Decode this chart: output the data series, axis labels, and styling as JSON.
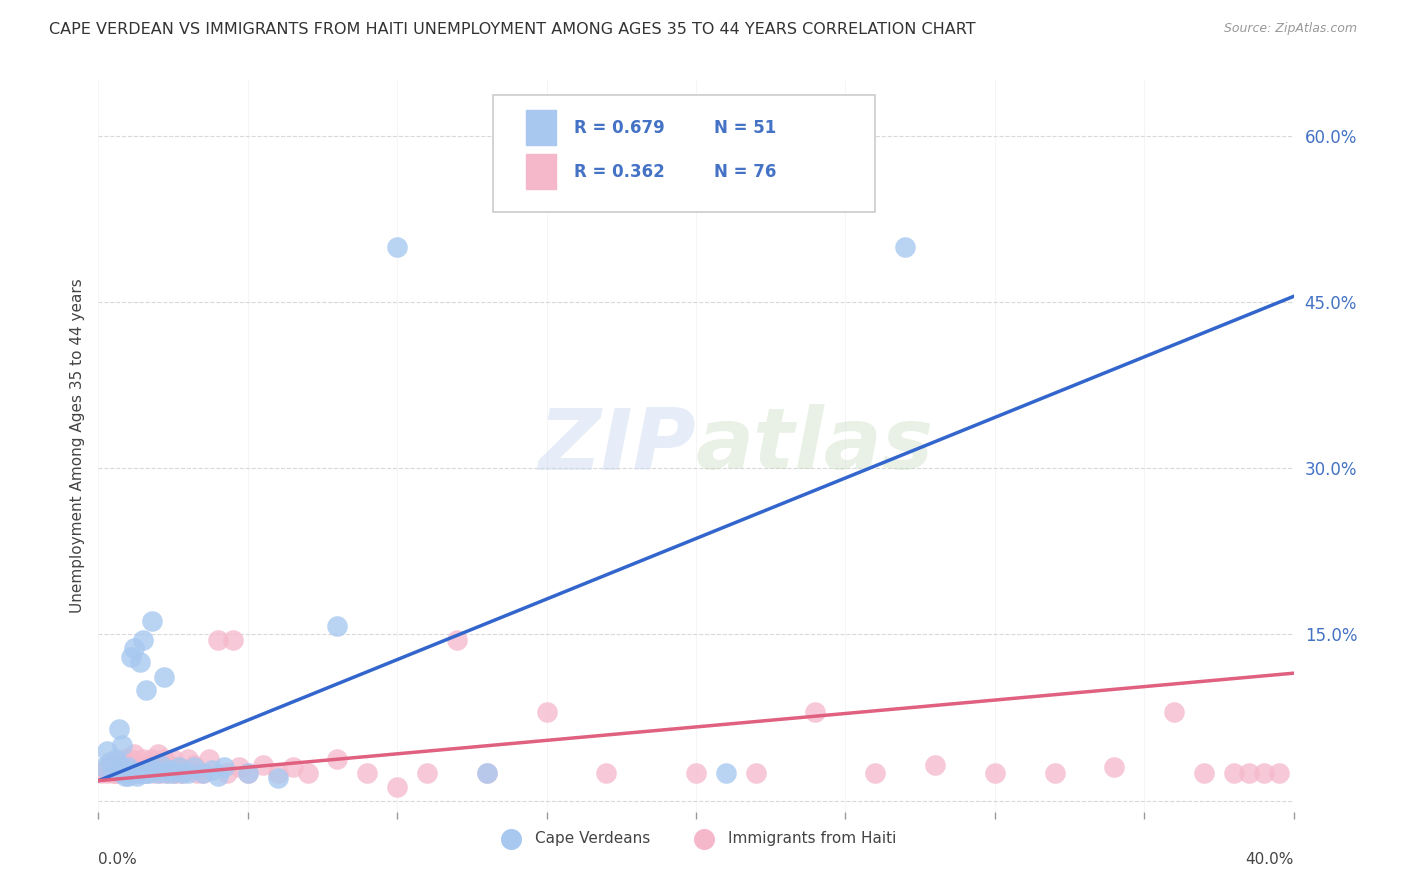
{
  "title": "CAPE VERDEAN VS IMMIGRANTS FROM HAITI UNEMPLOYMENT AMONG AGES 35 TO 44 YEARS CORRELATION CHART",
  "source": "Source: ZipAtlas.com",
  "ylabel": "Unemployment Among Ages 35 to 44 years",
  "xlim": [
    0.0,
    0.4
  ],
  "ylim": [
    -0.01,
    0.65
  ],
  "yticks": [
    0.0,
    0.15,
    0.3,
    0.45,
    0.6
  ],
  "ytick_labels": [
    "",
    "15.0%",
    "30.0%",
    "45.0%",
    "60.0%"
  ],
  "xticks": [
    0.0,
    0.05,
    0.1,
    0.15,
    0.2,
    0.25,
    0.3,
    0.35,
    0.4
  ],
  "grid_color": "#d0d0d0",
  "background_color": "#ffffff",
  "cape_verdean_color": "#a8c8f0",
  "haiti_color": "#f5b8cb",
  "cape_verdean_line_color": "#3366cc",
  "haiti_line_color": "#e06080",
  "tick_color": "#4472c4",
  "R_cape_verdean": 0.679,
  "N_cape_verdean": 51,
  "R_haiti": 0.362,
  "N_haiti": 76,
  "cv_line_x0": 0.0,
  "cv_line_y0": 0.018,
  "cv_line_x1": 0.4,
  "cv_line_y1": 0.455,
  "ht_line_x0": 0.0,
  "ht_line_y0": 0.018,
  "ht_line_x1": 0.4,
  "ht_line_y1": 0.115,
  "cape_verdean_points_x": [
    0.002,
    0.003,
    0.004,
    0.005,
    0.006,
    0.006,
    0.007,
    0.007,
    0.008,
    0.008,
    0.009,
    0.009,
    0.01,
    0.01,
    0.01,
    0.011,
    0.011,
    0.012,
    0.012,
    0.013,
    0.014,
    0.014,
    0.015,
    0.015,
    0.016,
    0.016,
    0.017,
    0.018,
    0.018,
    0.019,
    0.02,
    0.021,
    0.022,
    0.023,
    0.024,
    0.025,
    0.027,
    0.028,
    0.03,
    0.032,
    0.035,
    0.038,
    0.04,
    0.042,
    0.05,
    0.06,
    0.08,
    0.1,
    0.13,
    0.21,
    0.27
  ],
  "cape_verdean_points_y": [
    0.03,
    0.045,
    0.035,
    0.028,
    0.03,
    0.038,
    0.032,
    0.065,
    0.025,
    0.05,
    0.022,
    0.028,
    0.022,
    0.027,
    0.03,
    0.025,
    0.13,
    0.025,
    0.138,
    0.022,
    0.025,
    0.125,
    0.025,
    0.145,
    0.025,
    0.1,
    0.025,
    0.028,
    0.162,
    0.028,
    0.025,
    0.032,
    0.112,
    0.025,
    0.028,
    0.025,
    0.03,
    0.025,
    0.025,
    0.03,
    0.025,
    0.028,
    0.022,
    0.03,
    0.025,
    0.02,
    0.158,
    0.5,
    0.025,
    0.025,
    0.5
  ],
  "haiti_points_x": [
    0.001,
    0.002,
    0.003,
    0.004,
    0.004,
    0.005,
    0.005,
    0.006,
    0.006,
    0.007,
    0.008,
    0.008,
    0.009,
    0.009,
    0.01,
    0.01,
    0.011,
    0.012,
    0.012,
    0.013,
    0.013,
    0.014,
    0.015,
    0.015,
    0.016,
    0.017,
    0.018,
    0.019,
    0.02,
    0.02,
    0.021,
    0.022,
    0.023,
    0.024,
    0.025,
    0.025,
    0.026,
    0.027,
    0.028,
    0.03,
    0.03,
    0.032,
    0.033,
    0.035,
    0.037,
    0.04,
    0.043,
    0.045,
    0.047,
    0.05,
    0.055,
    0.06,
    0.065,
    0.07,
    0.08,
    0.09,
    0.1,
    0.11,
    0.12,
    0.13,
    0.15,
    0.17,
    0.2,
    0.22,
    0.24,
    0.26,
    0.28,
    0.3,
    0.32,
    0.34,
    0.36,
    0.37,
    0.38,
    0.385,
    0.39,
    0.395
  ],
  "haiti_points_y": [
    0.025,
    0.028,
    0.025,
    0.028,
    0.032,
    0.025,
    0.035,
    0.025,
    0.03,
    0.025,
    0.03,
    0.035,
    0.025,
    0.038,
    0.025,
    0.032,
    0.038,
    0.025,
    0.042,
    0.03,
    0.025,
    0.028,
    0.03,
    0.038,
    0.025,
    0.032,
    0.038,
    0.025,
    0.03,
    0.042,
    0.025,
    0.038,
    0.025,
    0.032,
    0.025,
    0.038,
    0.025,
    0.03,
    0.025,
    0.028,
    0.038,
    0.032,
    0.025,
    0.025,
    0.038,
    0.145,
    0.025,
    0.145,
    0.03,
    0.025,
    0.032,
    0.025,
    0.03,
    0.025,
    0.038,
    0.025,
    0.012,
    0.025,
    0.145,
    0.025,
    0.08,
    0.025,
    0.025,
    0.025,
    0.08,
    0.025,
    0.032,
    0.025,
    0.025,
    0.03,
    0.08,
    0.025,
    0.025,
    0.025,
    0.025,
    0.025
  ]
}
